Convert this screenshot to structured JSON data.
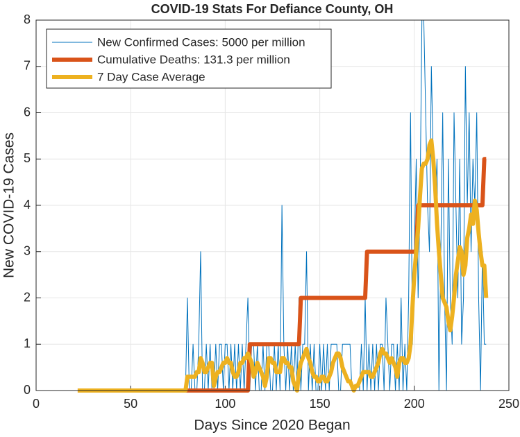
{
  "chart_data": {
    "type": "line",
    "title": "COVID-19 Stats For Defiance County, OH",
    "xlabel": "Days Since 2020 Began",
    "ylabel": "New COVID-19 Cases",
    "xlim": [
      0,
      250
    ],
    "xticks": [
      0,
      50,
      100,
      150,
      200,
      250
    ],
    "ylim": [
      0,
      8
    ],
    "yticks": [
      0,
      1,
      2,
      3,
      4,
      5,
      6,
      7,
      8
    ],
    "grid": true,
    "legend": "upper left",
    "x": [
      22,
      23,
      24,
      25,
      26,
      27,
      28,
      29,
      30,
      31,
      32,
      33,
      34,
      35,
      36,
      37,
      38,
      39,
      40,
      41,
      42,
      43,
      44,
      45,
      46,
      47,
      48,
      49,
      50,
      51,
      52,
      53,
      54,
      55,
      56,
      57,
      58,
      59,
      60,
      61,
      62,
      63,
      64,
      65,
      66,
      67,
      68,
      69,
      70,
      71,
      72,
      73,
      74,
      75,
      76,
      77,
      78,
      79,
      80,
      81,
      82,
      83,
      84,
      85,
      86,
      87,
      88,
      89,
      90,
      91,
      92,
      93,
      94,
      95,
      96,
      97,
      98,
      99,
      100,
      101,
      102,
      103,
      104,
      105,
      106,
      107,
      108,
      109,
      110,
      111,
      112,
      113,
      114,
      115,
      116,
      117,
      118,
      119,
      120,
      121,
      122,
      123,
      124,
      125,
      126,
      127,
      128,
      129,
      130,
      131,
      132,
      133,
      134,
      135,
      136,
      137,
      138,
      139,
      140,
      141,
      142,
      143,
      144,
      145,
      146,
      147,
      148,
      149,
      150,
      151,
      152,
      153,
      154,
      155,
      156,
      157,
      158,
      159,
      160,
      161,
      162,
      163,
      164,
      165,
      166,
      167,
      168,
      169,
      170,
      171,
      172,
      173,
      174,
      175,
      176,
      177,
      178,
      179,
      180,
      181,
      182,
      183,
      184,
      185,
      186,
      187,
      188,
      189,
      190,
      191,
      192,
      193,
      194,
      195,
      196,
      197,
      198,
      199,
      200,
      201,
      202,
      203,
      204,
      205,
      206,
      207,
      208,
      209,
      210,
      211,
      212,
      213,
      214,
      215,
      216,
      217,
      218,
      219,
      220,
      221,
      222,
      223,
      224,
      225,
      226,
      227,
      228,
      229,
      230,
      231,
      232,
      233,
      234,
      235,
      236,
      237,
      238
    ],
    "series": [
      {
        "name": "New Confirmed Cases: 5000 per million",
        "color": "#0072bd",
        "width": 1,
        "values": [
          0,
          0,
          0,
          0,
          0,
          0,
          0,
          0,
          0,
          0,
          0,
          0,
          0,
          0,
          0,
          0,
          0,
          0,
          0,
          0,
          0,
          0,
          0,
          0,
          0,
          0,
          0,
          0,
          0,
          0,
          0,
          0,
          0,
          0,
          0,
          0,
          0,
          0,
          0,
          0,
          0,
          0,
          0,
          0,
          0,
          0,
          0,
          0,
          0,
          0,
          0,
          0,
          0,
          0,
          0,
          0,
          0,
          0,
          2,
          0,
          0,
          1,
          0,
          0,
          1,
          3,
          0,
          0,
          1,
          0,
          1,
          0,
          0,
          1,
          0,
          1,
          1,
          0,
          1,
          1,
          0,
          1,
          0,
          1,
          0,
          1,
          0,
          1,
          0,
          1,
          2,
          0,
          1,
          1,
          0,
          1,
          0,
          0,
          1,
          0,
          1,
          1,
          0,
          0,
          1,
          0,
          1,
          0,
          4,
          1,
          0,
          1,
          0,
          1,
          0,
          1,
          0,
          2,
          0,
          1,
          1,
          3,
          0,
          1,
          0,
          1,
          0,
          0,
          1,
          0,
          1,
          0,
          1,
          0,
          1,
          1,
          1,
          1,
          0,
          0,
          1,
          1,
          1,
          1,
          1,
          0,
          0,
          0,
          0,
          0,
          1,
          0,
          2,
          0,
          1,
          0,
          1,
          0,
          1,
          0,
          1,
          1,
          0,
          2,
          1,
          0,
          1,
          1,
          0,
          1,
          0,
          2,
          0,
          1,
          0,
          2,
          6,
          1,
          3,
          5,
          2,
          4,
          8,
          8,
          6,
          4,
          3,
          7,
          5,
          4,
          5,
          0,
          3,
          6,
          2,
          0,
          5,
          2,
          1,
          6,
          4,
          2,
          5,
          1,
          2,
          7,
          4,
          6,
          3,
          5,
          4,
          6,
          2,
          0,
          3,
          1,
          1
        ]
      },
      {
        "name": "Cumulative Deaths: 131.3 per million",
        "color": "#d95319",
        "width": 6,
        "values": [
          0,
          0,
          0,
          0,
          0,
          0,
          0,
          0,
          0,
          0,
          0,
          0,
          0,
          0,
          0,
          0,
          0,
          0,
          0,
          0,
          0,
          0,
          0,
          0,
          0,
          0,
          0,
          0,
          0,
          0,
          0,
          0,
          0,
          0,
          0,
          0,
          0,
          0,
          0,
          0,
          0,
          0,
          0,
          0,
          0,
          0,
          0,
          0,
          0,
          0,
          0,
          0,
          0,
          0,
          0,
          0,
          0,
          0,
          0,
          0,
          0,
          0,
          0,
          0,
          0,
          0,
          0,
          0,
          0,
          0,
          0,
          0,
          0,
          0,
          0,
          0,
          0,
          0,
          0,
          0,
          0,
          0,
          0,
          0,
          0,
          0,
          0,
          0,
          0,
          0,
          0,
          1,
          1,
          1,
          1,
          1,
          1,
          1,
          1,
          1,
          1,
          1,
          1,
          1,
          1,
          1,
          1,
          1,
          1,
          1,
          1,
          1,
          1,
          1,
          1,
          1,
          1,
          1,
          2,
          2,
          2,
          2,
          2,
          2,
          2,
          2,
          2,
          2,
          2,
          2,
          2,
          2,
          2,
          2,
          2,
          2,
          2,
          2,
          2,
          2,
          2,
          2,
          2,
          2,
          2,
          2,
          2,
          2,
          2,
          2,
          2,
          2,
          2,
          3,
          3,
          3,
          3,
          3,
          3,
          3,
          3,
          3,
          3,
          3,
          3,
          3,
          3,
          3,
          3,
          3,
          3,
          3,
          3,
          3,
          3,
          3,
          3,
          3,
          3,
          3,
          4,
          4,
          4,
          4,
          4,
          4,
          4,
          4,
          4,
          4,
          4,
          4,
          4,
          4,
          4,
          4,
          4,
          4,
          4,
          4,
          4,
          4,
          4,
          4,
          4,
          4,
          4,
          4,
          4,
          4,
          4,
          4,
          4,
          4,
          4,
          5,
          5
        ]
      },
      {
        "name": "7 Day Case Average",
        "color": "#edb120",
        "width": 6,
        "values": [
          0,
          0,
          0,
          0,
          0,
          0,
          0,
          0,
          0,
          0,
          0,
          0,
          0,
          0,
          0,
          0,
          0,
          0,
          0,
          0,
          0,
          0,
          0,
          0,
          0,
          0,
          0,
          0,
          0,
          0,
          0,
          0,
          0,
          0,
          0,
          0,
          0,
          0,
          0,
          0,
          0,
          0,
          0,
          0,
          0,
          0,
          0,
          0,
          0,
          0,
          0,
          0,
          0,
          0,
          0,
          0,
          0,
          0,
          0.3,
          0.3,
          0.3,
          0.3,
          0.3,
          0.4,
          0.4,
          0.7,
          0.6,
          0.4,
          0.4,
          0.5,
          0.6,
          0.6,
          0.1,
          0.3,
          0.4,
          0.4,
          0.5,
          0.6,
          0.6,
          0.7,
          0.6,
          0.6,
          0.4,
          0.3,
          0.3,
          0.4,
          0.6,
          0.6,
          0.7,
          0.7,
          0.8,
          0.7,
          0.6,
          0.3,
          0.4,
          0.6,
          0.5,
          0.4,
          0.3,
          0.1,
          0.3,
          0.7,
          0.7,
          0.6,
          0.6,
          0.4,
          0.4,
          0.4,
          0.7,
          0.7,
          0.6,
          0.6,
          0.5,
          0.5,
          0.2,
          0.1,
          0,
          0.4,
          0.6,
          0.7,
          0.8,
          0.9,
          0.7,
          0.6,
          0.4,
          0.3,
          0.3,
          0.2,
          0.2,
          0.3,
          0.3,
          0.2,
          0.2,
          0.3,
          0.4,
          0.6,
          0.7,
          0.8,
          0.8,
          0.7,
          0.5,
          0.4,
          0.3,
          0.2,
          0.2,
          0.1,
          0,
          0.1,
          0.1,
          0.2,
          0.3,
          0.4,
          0.4,
          0.4,
          0.4,
          0.3,
          0.3,
          0.4,
          0.5,
          0.6,
          0.8,
          0.9,
          0.8,
          0.8,
          0.7,
          0.6,
          0.7,
          0.6,
          0.5,
          0.3,
          0.6,
          0.7,
          0.7,
          0.6,
          0.6,
          0.7,
          1,
          1.8,
          2.5,
          3,
          3.5,
          4.2,
          4.8,
          4.9,
          4.9,
          5,
          5.3,
          5.4,
          5,
          4.4,
          3.6,
          3,
          2.5,
          2,
          1.9,
          1.8,
          1.5,
          1.3,
          1.6,
          2,
          2.5,
          2.8,
          3.1,
          3,
          2.5,
          2.7,
          3.3,
          3.5,
          3.8,
          3.6,
          4.1,
          3.9,
          3.4,
          3,
          2.7,
          2.7,
          2
        ]
      }
    ]
  }
}
